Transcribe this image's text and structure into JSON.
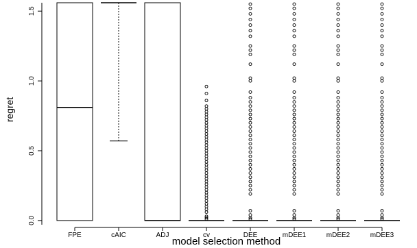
{
  "chart_data": {
    "type": "boxplot",
    "xlabel": "model selection method",
    "ylabel": "regret",
    "ylim": [
      -0.03,
      1.56
    ],
    "yticks": [
      0.0,
      0.5,
      1.0,
      1.5
    ],
    "ytick_labels": [
      "0.0",
      "0.5",
      "1.0",
      "1.5"
    ],
    "categories": [
      "FPE",
      "cAIC",
      "ADJ",
      "cv",
      "DEE",
      "mDEE1",
      "mDEE2",
      "mDEE3"
    ],
    "boxes": [
      {
        "name": "FPE",
        "q1": 0.0,
        "median": 0.81,
        "q3": 1.6,
        "whisker_low": 0.0,
        "whisker_high": 1.6,
        "outliers": []
      },
      {
        "name": "cAIC",
        "q1": 1.6,
        "median": 1.6,
        "q3": 1.6,
        "whisker_low": 0.57,
        "whisker_high": 1.6,
        "outliers": []
      },
      {
        "name": "ADJ",
        "q1": 0.0,
        "median": 0.0,
        "q3": 1.6,
        "whisker_low": 0.0,
        "whisker_high": 1.6,
        "outliers": []
      },
      {
        "name": "cv",
        "q1": 0.0,
        "median": 0.0,
        "q3": 0.0,
        "whisker_low": 0.0,
        "whisker_high": 0.0,
        "outliers": [
          0.01,
          0.02,
          0.03,
          0.06,
          0.08,
          0.1,
          0.12,
          0.14,
          0.16,
          0.18,
          0.2,
          0.22,
          0.24,
          0.26,
          0.28,
          0.3,
          0.32,
          0.34,
          0.36,
          0.38,
          0.4,
          0.42,
          0.44,
          0.46,
          0.48,
          0.5,
          0.52,
          0.54,
          0.56,
          0.58,
          0.6,
          0.62,
          0.64,
          0.66,
          0.68,
          0.7,
          0.72,
          0.74,
          0.76,
          0.78,
          0.8,
          0.82,
          0.86,
          0.91,
          0.96
        ]
      },
      {
        "name": "DEE",
        "q1": 0.0,
        "median": 0.0,
        "q3": 0.0,
        "whisker_low": 0.0,
        "whisker_high": 0.0,
        "outliers": [
          0.01,
          0.02,
          0.04,
          0.07,
          0.19,
          0.22,
          0.25,
          0.28,
          0.31,
          0.34,
          0.37,
          0.4,
          0.43,
          0.46,
          0.49,
          0.52,
          0.55,
          0.58,
          0.61,
          0.64,
          0.67,
          0.7,
          0.73,
          0.76,
          0.79,
          0.82,
          0.85,
          0.88,
          0.92,
          1.0,
          1.02,
          1.12,
          1.19,
          1.22,
          1.25,
          1.32,
          1.36,
          1.4,
          1.44,
          1.48,
          1.52,
          1.55
        ]
      },
      {
        "name": "mDEE1",
        "q1": 0.0,
        "median": 0.0,
        "q3": 0.0,
        "whisker_low": 0.0,
        "whisker_high": 0.0,
        "outliers": [
          0.01,
          0.02,
          0.04,
          0.07,
          0.19,
          0.22,
          0.25,
          0.28,
          0.31,
          0.34,
          0.37,
          0.4,
          0.43,
          0.46,
          0.49,
          0.52,
          0.55,
          0.58,
          0.61,
          0.64,
          0.67,
          0.7,
          0.73,
          0.76,
          0.79,
          0.82,
          0.85,
          0.88,
          0.92,
          1.0,
          1.02,
          1.12,
          1.19,
          1.22,
          1.25,
          1.32,
          1.36,
          1.4,
          1.44,
          1.48,
          1.52,
          1.55
        ]
      },
      {
        "name": "mDEE2",
        "q1": 0.0,
        "median": 0.0,
        "q3": 0.0,
        "whisker_low": 0.0,
        "whisker_high": 0.0,
        "outliers": [
          0.01,
          0.02,
          0.04,
          0.07,
          0.19,
          0.22,
          0.25,
          0.28,
          0.31,
          0.34,
          0.37,
          0.4,
          0.43,
          0.46,
          0.49,
          0.52,
          0.55,
          0.58,
          0.61,
          0.64,
          0.67,
          0.7,
          0.73,
          0.76,
          0.79,
          0.82,
          0.85,
          0.88,
          0.92,
          1.0,
          1.02,
          1.12,
          1.19,
          1.22,
          1.25,
          1.32,
          1.36,
          1.4,
          1.44,
          1.48,
          1.52,
          1.55
        ]
      },
      {
        "name": "mDEE3",
        "q1": 0.0,
        "median": 0.0,
        "q3": 0.0,
        "whisker_low": 0.0,
        "whisker_high": 0.0,
        "outliers": [
          0.01,
          0.02,
          0.04,
          0.07,
          0.19,
          0.22,
          0.25,
          0.28,
          0.31,
          0.34,
          0.37,
          0.4,
          0.43,
          0.46,
          0.49,
          0.52,
          0.55,
          0.58,
          0.61,
          0.64,
          0.67,
          0.7,
          0.73,
          0.76,
          0.79,
          0.82,
          0.85,
          0.88,
          0.92,
          1.0,
          1.02,
          1.12,
          1.19,
          1.22,
          1.25,
          1.32,
          1.36,
          1.4,
          1.44,
          1.48,
          1.52,
          1.55
        ]
      }
    ],
    "grid": false,
    "colors": {
      "line": "#000000",
      "background": "#ffffff"
    }
  }
}
